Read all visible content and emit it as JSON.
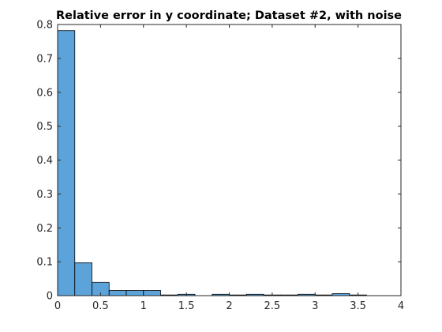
{
  "chart_data": {
    "type": "bar",
    "subtype": "histogram",
    "title": "Relative error in y coordinate; Dataset #2, with noise",
    "xlabel": "",
    "ylabel": "",
    "xlim": [
      0,
      4
    ],
    "ylim": [
      0,
      0.8
    ],
    "x_ticks": [
      0,
      0.5,
      1,
      1.5,
      2,
      2.5,
      3,
      3.5,
      4
    ],
    "x_tick_labels": [
      "0",
      "0.5",
      "1",
      "1.5",
      "2",
      "2.5",
      "3",
      "3.5",
      "4"
    ],
    "y_ticks": [
      0,
      0.1,
      0.2,
      0.3,
      0.4,
      0.5,
      0.6,
      0.7,
      0.8
    ],
    "y_tick_labels": [
      "0",
      "0.1",
      "0.2",
      "0.3",
      "0.4",
      "0.5",
      "0.6",
      "0.7",
      "0.8"
    ],
    "bin_edges": [
      0,
      0.2,
      0.4,
      0.6,
      0.8,
      1.0,
      1.2,
      1.4,
      1.6,
      1.8,
      2.0,
      2.2,
      2.4,
      2.6,
      2.8,
      3.0,
      3.2,
      3.4,
      3.6
    ],
    "values": [
      0.782,
      0.097,
      0.039,
      0.015,
      0.015,
      0.015,
      0.002,
      0.004,
      0.0,
      0.004,
      0.002,
      0.004,
      0.002,
      0.002,
      0.004,
      0.002,
      0.006,
      0.002
    ],
    "bar_color": "#5ba3d9",
    "bar_edge_color": "#000000",
    "grid": false,
    "box": true
  }
}
